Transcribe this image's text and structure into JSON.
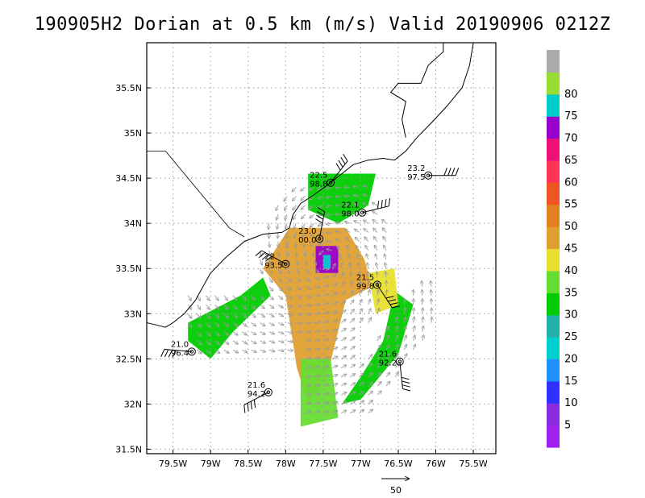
{
  "title": "190905H2 Dorian at 0.5 km (m/s) Valid 20190906 0212Z",
  "map": {
    "lon_range": [
      -79.85,
      -75.2
    ],
    "lat_range": [
      31.45,
      36.0
    ],
    "lon_ticks": [
      -79.5,
      -79,
      -78.5,
      -78,
      -77.5,
      -77,
      -76.5,
      -76,
      -75.5
    ],
    "lon_tick_labels": [
      "79.5W",
      "79W",
      "78.5W",
      "78W",
      "77.5W",
      "77W",
      "76.5W",
      "76W",
      "75.5W"
    ],
    "lat_ticks": [
      31.5,
      32,
      32.5,
      33,
      33.5,
      34,
      34.5,
      35,
      35.5
    ],
    "lat_tick_labels": [
      "31.5N",
      "32N",
      "32.5N",
      "33N",
      "33.5N",
      "34N",
      "34.5N",
      "35N",
      "35.5N"
    ],
    "grid": true,
    "coastline": [
      [
        -79.85,
        32.9
      ],
      [
        -79.75,
        32.88
      ],
      [
        -79.6,
        32.85
      ],
      [
        -79.5,
        32.9
      ],
      [
        -79.35,
        33.0
      ],
      [
        -79.2,
        33.15
      ],
      [
        -79.1,
        33.3
      ],
      [
        -79.0,
        33.45
      ],
      [
        -78.8,
        33.62
      ],
      [
        -78.55,
        33.8
      ],
      [
        -78.3,
        33.88
      ],
      [
        -78.05,
        33.9
      ],
      [
        -77.95,
        33.95
      ],
      [
        -77.9,
        34.1
      ],
      [
        -77.8,
        34.22
      ],
      [
        -77.65,
        34.3
      ],
      [
        -77.45,
        34.42
      ],
      [
        -77.25,
        34.55
      ],
      [
        -77.1,
        34.65
      ],
      [
        -76.9,
        34.7
      ],
      [
        -76.7,
        34.72
      ],
      [
        -76.55,
        34.7
      ],
      [
        -76.4,
        34.8
      ],
      [
        -76.25,
        34.95
      ],
      [
        -76.05,
        35.12
      ],
      [
        -75.85,
        35.3
      ],
      [
        -75.65,
        35.5
      ],
      [
        -75.55,
        35.75
      ],
      [
        -75.5,
        36.0
      ]
    ],
    "sound_shore": [
      [
        -76.4,
        34.95
      ],
      [
        -76.45,
        35.15
      ],
      [
        -76.4,
        35.35
      ],
      [
        -76.6,
        35.45
      ],
      [
        -76.5,
        35.55
      ],
      [
        -76.2,
        35.55
      ],
      [
        -76.1,
        35.75
      ],
      [
        -75.9,
        35.9
      ],
      [
        -75.9,
        36.0
      ]
    ],
    "state_border": [
      [
        -79.85,
        34.8
      ],
      [
        -79.6,
        34.8
      ],
      [
        -79.45,
        34.65
      ],
      [
        -79.1,
        34.3
      ],
      [
        -78.75,
        33.95
      ],
      [
        -78.55,
        33.85
      ]
    ],
    "colorbar": {
      "levels": [
        "5",
        "10",
        "15",
        "20",
        "25",
        "30",
        "35",
        "40",
        "45",
        "50",
        "55",
        "60",
        "65",
        "70",
        "75",
        "80"
      ],
      "colors": [
        "#a020f0",
        "#8a2be2",
        "#3030ff",
        "#1e90ff",
        "#00ced1",
        "#20b2aa",
        "#00cc00",
        "#66dd33",
        "#e8e030",
        "#e0a030",
        "#e08020",
        "#ee5522",
        "#ff3355",
        "#ee1177",
        "#9900cc",
        "#00cccc",
        "#99dd33",
        "#aaaaaa"
      ]
    },
    "wind_field": [
      {
        "lon": -77.45,
        "lat": 33.65,
        "speed": 75
      },
      {
        "lon": -77.3,
        "lat": 33.45,
        "speed": 45
      },
      {
        "lon": -77.4,
        "lat": 33.0,
        "speed": 42
      },
      {
        "lon": -77.6,
        "lat": 33.9,
        "speed": 45
      },
      {
        "lon": -78.1,
        "lat": 33.6,
        "speed": 45
      },
      {
        "lon": -77.0,
        "lat": 34.3,
        "speed": 30
      },
      {
        "lon": -77.5,
        "lat": 34.55,
        "speed": 28
      },
      {
        "lon": -76.6,
        "lat": 32.8,
        "speed": 33
      },
      {
        "lon": -78.9,
        "lat": 32.9,
        "speed": 33
      },
      {
        "lon": -77.5,
        "lat": 32.3,
        "speed": 35
      },
      {
        "lon": -76.4,
        "lat": 33.2,
        "speed": 35
      }
    ],
    "stations": [
      {
        "lon": -77.4,
        "lat": 34.45,
        "label1": "22.5",
        "label2": "98.8"
      },
      {
        "lon": -76.1,
        "lat": 34.53,
        "label1": "23.2",
        "label2": "97.5"
      },
      {
        "lon": -76.98,
        "lat": 34.12,
        "label1": "22.1",
        "label2": "98.0"
      },
      {
        "lon": -77.55,
        "lat": 33.83,
        "label1": "23.0",
        "label2": "00.0"
      },
      {
        "lon": -76.78,
        "lat": 33.32,
        "label1": "21.5",
        "label2": "99.8"
      },
      {
        "lon": -79.25,
        "lat": 32.58,
        "label1": "21.0",
        "label2": "96.4"
      },
      {
        "lon": -76.48,
        "lat": 32.47,
        "label1": "21.6",
        "label2": "92.2"
      },
      {
        "lon": -78.23,
        "lat": 32.13,
        "label1": "21.6",
        "label2": "94.2"
      },
      {
        "lon": -78.0,
        "lat": 33.55,
        "label1": "22.",
        "label2": "93.5"
      }
    ],
    "reference_vector_label": "50"
  }
}
